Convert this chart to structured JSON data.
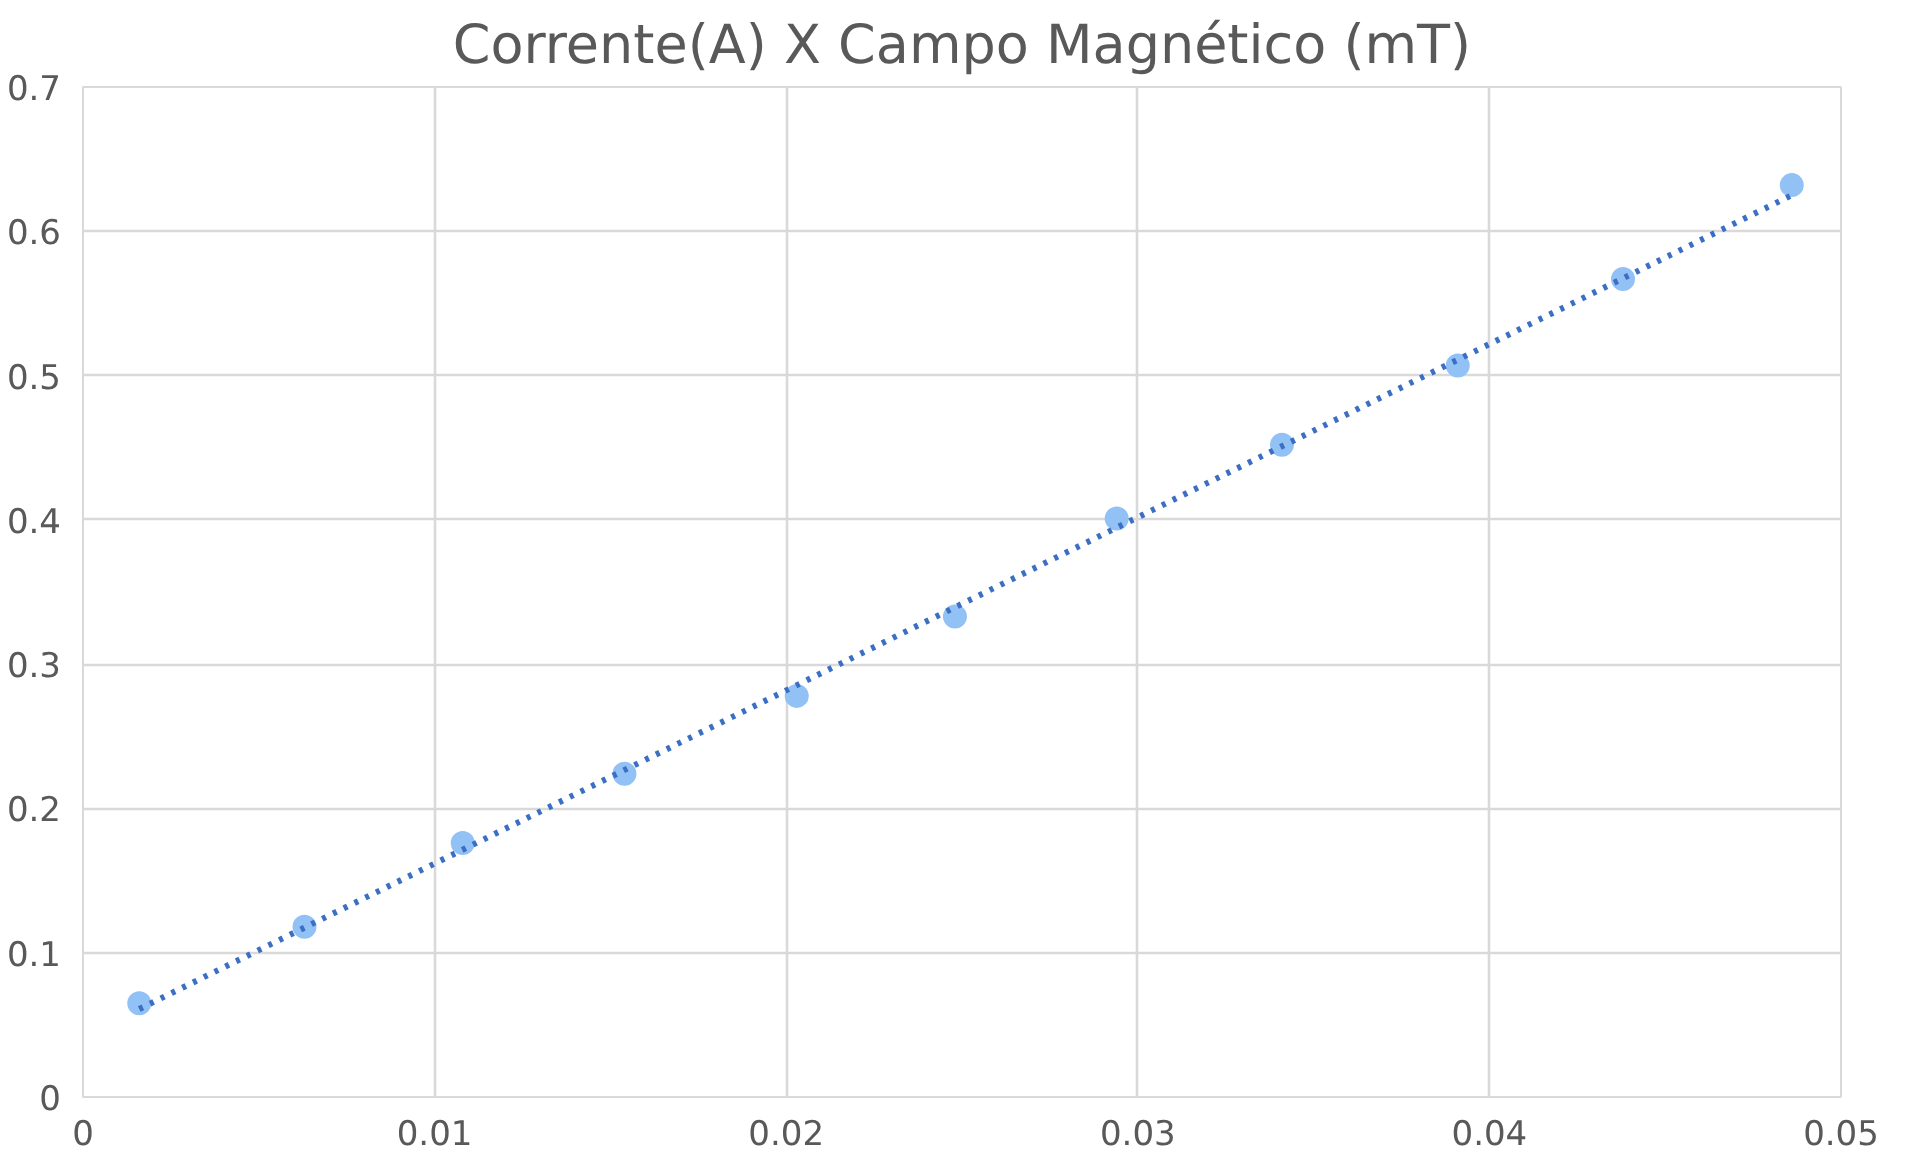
{
  "chart_data": {
    "type": "scatter",
    "title": "Corrente(A) X Campo Magnético (mT)",
    "series": [
      {
        "color": "#92c1f5",
        "marker": "circle",
        "x": [
          0.0016,
          0.0063,
          0.0108,
          0.0154,
          0.0203,
          0.0248,
          0.0294,
          0.0341,
          0.0391,
          0.0438,
          0.0486
        ],
        "values": [
          0.065,
          0.118,
          0.176,
          0.224,
          0.278,
          0.333,
          0.401,
          0.452,
          0.507,
          0.567,
          0.632
        ]
      },
      {
        "type": "line",
        "color": "#3b6fc4",
        "line_style": "dotted",
        "x": [
          0.0016,
          0.0486
        ],
        "values": [
          0.061,
          0.625
        ]
      }
    ],
    "xlim": [
      0,
      0.05
    ],
    "xticks": [
      0,
      0.01,
      0.02,
      0.03,
      0.04,
      0.05
    ],
    "ylim": [
      0,
      0.7
    ],
    "yticks": [
      0,
      0.1,
      0.2,
      0.3,
      0.4,
      0.5,
      0.6,
      0.7
    ],
    "grid": true
  }
}
